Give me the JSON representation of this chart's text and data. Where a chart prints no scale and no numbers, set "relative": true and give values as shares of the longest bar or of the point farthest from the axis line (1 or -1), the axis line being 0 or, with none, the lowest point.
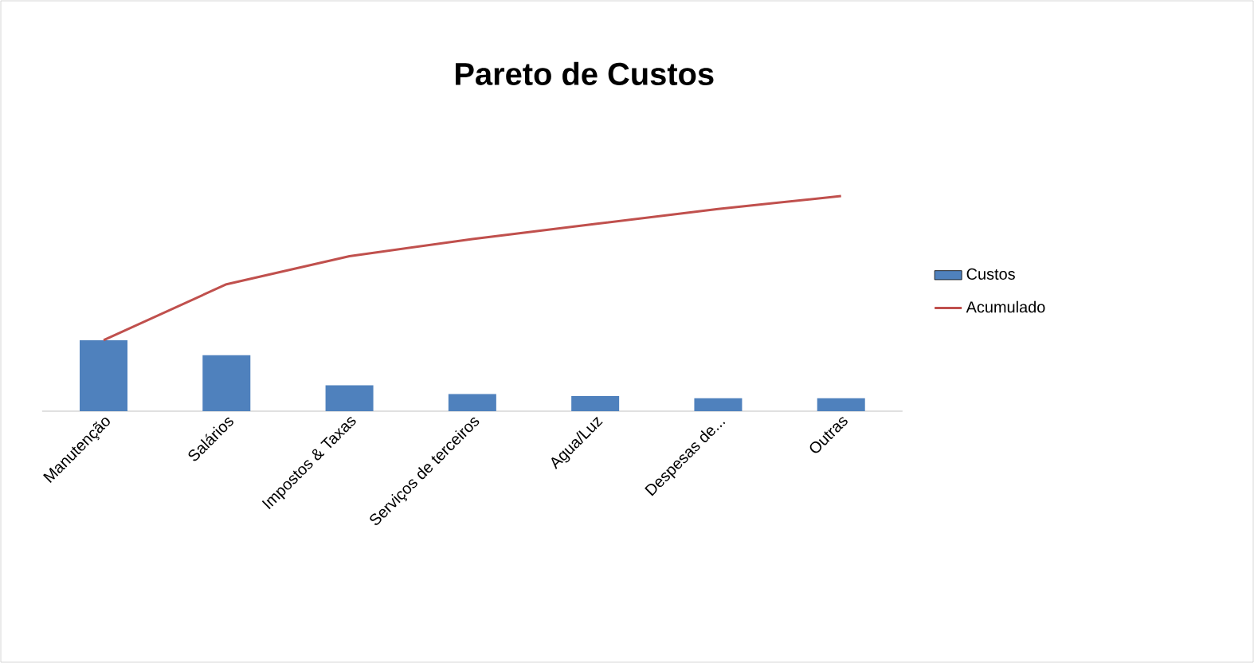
{
  "chart_data": {
    "type": "bar",
    "title": "Pareto de Custos",
    "relative": true,
    "categories": [
      "Manutenção",
      "Salários",
      "Impostos & Taxas",
      "Serviços de terceiros",
      "Agua/Luz",
      "Despesas de...",
      "Outras"
    ],
    "series": [
      {
        "name": "Custos",
        "color": "#4f81bd",
        "values": [
          0.33,
          0.26,
          0.12,
          0.08,
          0.07,
          0.06,
          0.06
        ]
      },
      {
        "name": "Acumulado",
        "type": "line",
        "color": "#c0504d",
        "values": [
          0.33,
          0.59,
          0.72,
          0.8,
          0.87,
          0.94,
          1.0
        ]
      }
    ],
    "legend": "right",
    "marker": "none",
    "line_style": "solid"
  }
}
